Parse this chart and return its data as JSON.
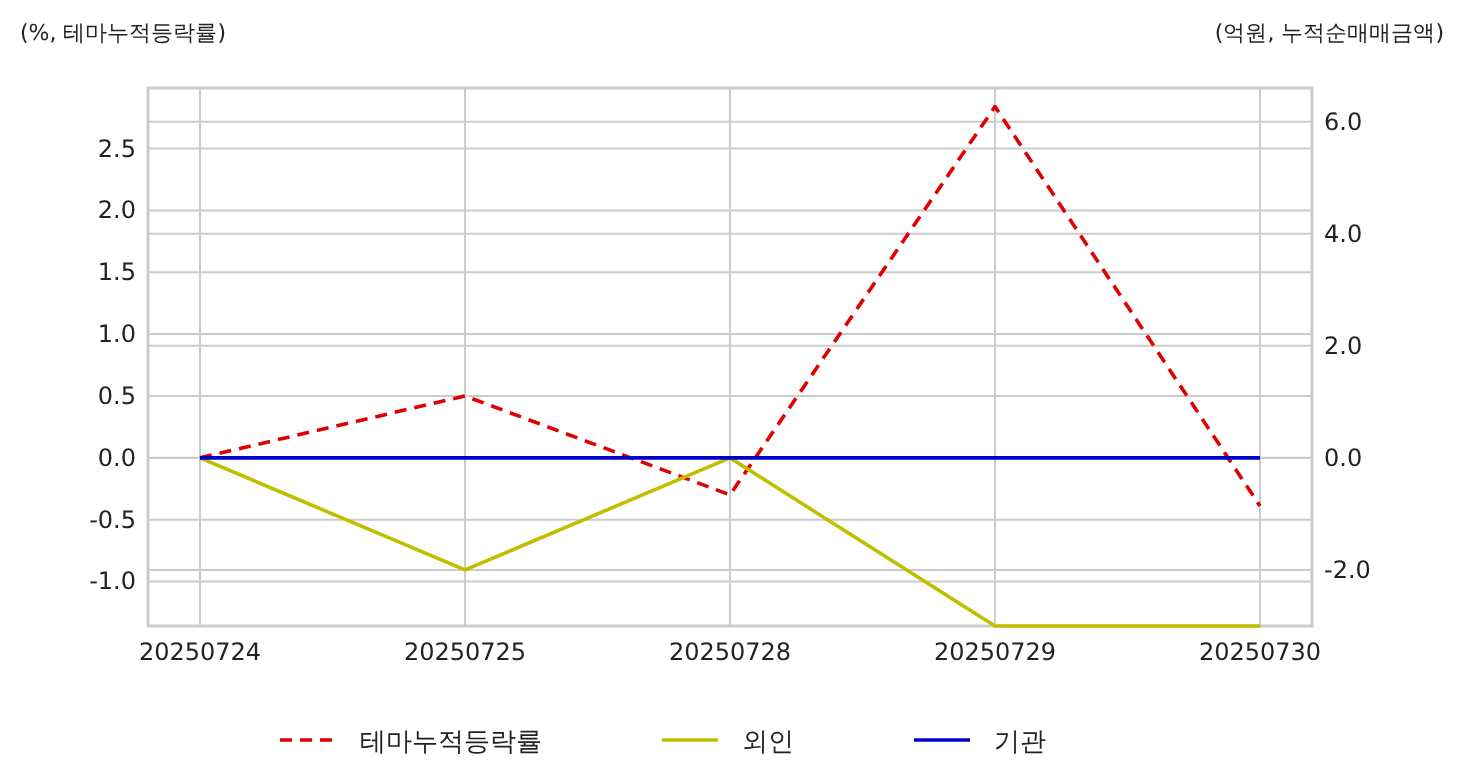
{
  "chart_data": {
    "type": "line",
    "ylabel": "(%, 테마누적등락률)",
    "y2label": "(억원, 누적순매매금액)",
    "categories": [
      "20250724",
      "20250725",
      "20250728",
      "20250729",
      "20250730"
    ],
    "ylim": [
      -1.36,
      2.99
    ],
    "yticks": [
      {
        "value": -1,
        "label": "-1.0"
      },
      {
        "value": -0.5,
        "label": "-0.5"
      },
      {
        "value": 0,
        "label": "0.0"
      },
      {
        "value": 0.5,
        "label": "0.5"
      },
      {
        "value": 1,
        "label": "1.0"
      },
      {
        "value": 1.5,
        "label": "1.5"
      },
      {
        "value": 2,
        "label": "2.0"
      },
      {
        "value": 2.5,
        "label": "2.5"
      }
    ],
    "y2lim": [
      -3.0,
      6.6
    ],
    "y2ticks": [
      {
        "value": -2,
        "label": "-2.0"
      },
      {
        "value": 0,
        "label": "0.0"
      },
      {
        "value": 2,
        "label": "2.0"
      },
      {
        "value": 4,
        "label": "4.0"
      },
      {
        "value": 6,
        "label": "6.0"
      }
    ],
    "grid": true,
    "legend": "bottom",
    "marker": "none",
    "series": [
      {
        "name": "테마누적등락률",
        "color": "#e00000",
        "line_style": "dashed",
        "values": [
          0,
          0.5,
          -0.3,
          2.84,
          -0.39
        ]
      },
      {
        "name": "외인",
        "color": "#bfbf00",
        "axis": "y2",
        "values": [
          0,
          -2.0,
          0,
          -3.0,
          -3.0
        ]
      },
      {
        "name": "기관",
        "color": "#0000cc",
        "axis": "y2",
        "values": [
          0,
          0,
          0,
          0,
          0
        ]
      }
    ]
  }
}
